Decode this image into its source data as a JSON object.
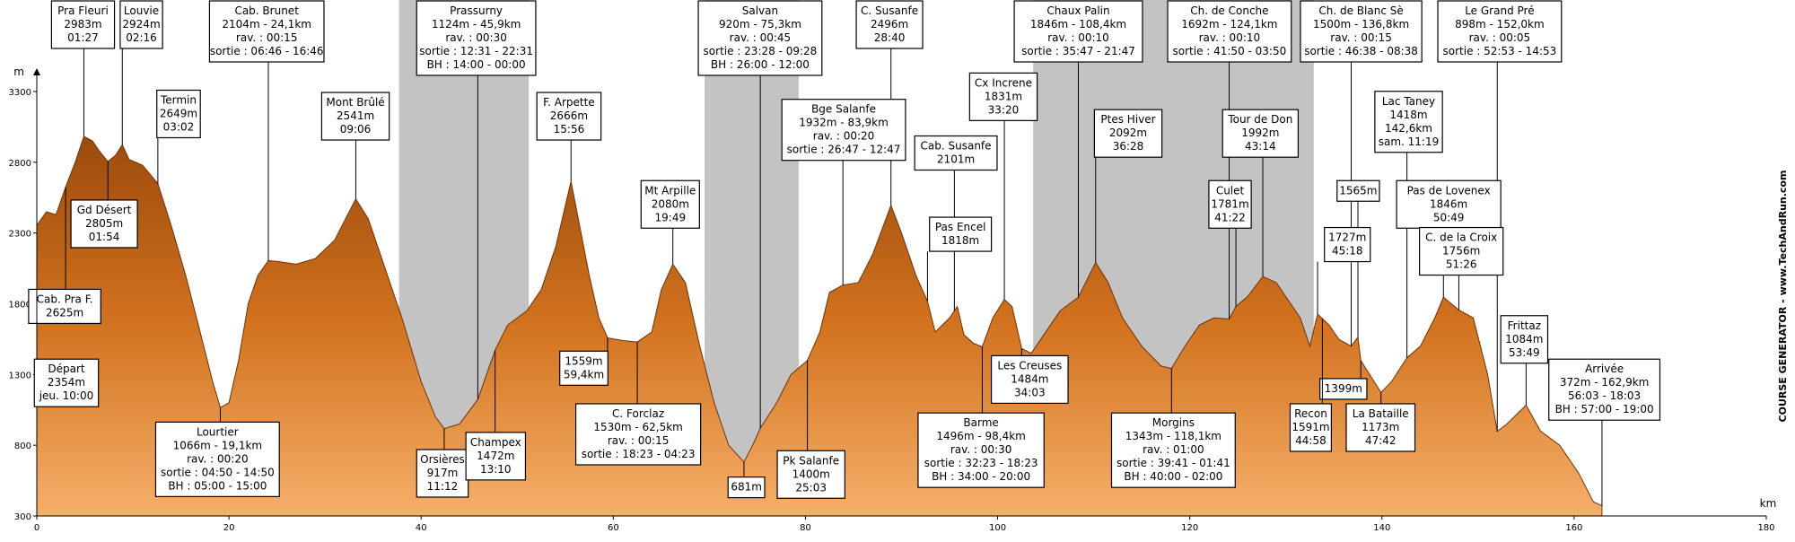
{
  "chart_data": {
    "type": "area",
    "x": [
      0,
      1,
      2,
      3,
      4,
      4.9,
      5.8,
      6.5,
      7.4,
      8.2,
      8.9,
      9.6,
      11,
      12.6,
      14,
      15.5,
      17,
      18.3,
      19.1,
      20,
      21,
      22,
      23,
      24.1,
      25,
      27,
      29,
      31,
      33.2,
      34.5,
      36,
      38,
      40,
      41.5,
      42.4,
      44,
      45.9,
      47.7,
      49,
      51,
      52.5,
      54,
      55.6,
      56.5,
      57.5,
      58.5,
      59.4,
      61,
      62.5,
      64,
      65,
      66.2,
      67.5,
      69,
      70.5,
      72,
      73.6,
      74.5,
      75.3,
      77,
      78.5,
      80.2,
      81.5,
      82.5,
      83.9,
      85.5,
      87,
      88.9,
      90,
      91.5,
      92.7,
      93.5,
      95,
      95.8,
      96.5,
      97.5,
      98.4,
      99.5,
      100.7,
      101.5,
      102.5,
      103.5,
      105,
      106.5,
      108.4,
      110.2,
      111.5,
      113,
      115,
      117,
      118.1,
      119.5,
      121,
      122.5,
      124.1,
      124.8,
      126,
      127.6,
      129,
      130.5,
      131.5,
      132.5,
      133.3,
      134.5,
      135.5,
      136.8,
      137.5,
      137.8,
      139.9,
      141,
      142.6,
      144,
      145.5,
      146.4,
      148,
      149.5,
      151,
      152,
      153,
      155,
      156.5,
      158.5,
      160.5,
      162,
      162.9
    ],
    "values": [
      2354,
      2450,
      2430,
      2625,
      2800,
      2983,
      2950,
      2880,
      2805,
      2850,
      2924,
      2820,
      2780,
      2649,
      2350,
      2000,
      1600,
      1250,
      1066,
      1100,
      1400,
      1800,
      2000,
      2104,
      2100,
      2080,
      2120,
      2250,
      2541,
      2400,
      2100,
      1700,
      1250,
      1000,
      917,
      950,
      1124,
      1472,
      1650,
      1750,
      1900,
      2200,
      2666,
      2350,
      2000,
      1700,
      1559,
      1540,
      1530,
      1600,
      1900,
      2080,
      1950,
      1500,
      1100,
      800,
      681,
      800,
      920,
      1100,
      1300,
      1400,
      1600,
      1880,
      1932,
      1950,
      2150,
      2496,
      2300,
      2000,
      1818,
      1600,
      1700,
      1780,
      1580,
      1520,
      1496,
      1700,
      1831,
      1780,
      1484,
      1450,
      1600,
      1750,
      1846,
      2092,
      1950,
      1700,
      1500,
      1360,
      1343,
      1500,
      1650,
      1700,
      1692,
      1781,
      1850,
      1992,
      1950,
      1800,
      1700,
      1500,
      1727,
      1650,
      1550,
      1500,
      1565,
      1399,
      1173,
      1250,
      1418,
      1500,
      1700,
      1846,
      1756,
      1700,
      1300,
      898,
      950,
      1084,
      900,
      800,
      600,
      400,
      372
    ],
    "color": "#d2731f",
    "xlim": [
      0,
      180
    ],
    "ylim": [
      300,
      3300
    ],
    "xticks": [
      0,
      20,
      40,
      60,
      80,
      100,
      120,
      140,
      160,
      180
    ],
    "yticks": [
      300,
      800,
      1300,
      1800,
      2300,
      2800,
      3300
    ],
    "xlabel": "km",
    "ylabel": "m",
    "shaded_ranges": [
      [
        37.7,
        51.2
      ],
      [
        69.5,
        79.3
      ],
      [
        103.7,
        132.9
      ]
    ],
    "annotations": [
      {
        "lines": [
          "Pra Fleuri",
          "2983m",
          "01:27"
        ],
        "x": 4.9
      },
      {
        "lines": [
          "Louvie",
          "2924m",
          "02:16"
        ],
        "x": 8.9
      },
      {
        "lines": [
          "Cab. Brunet",
          "2104m - 24,1km",
          "rav. : 00:15",
          "sortie : 06:46 - 16:46"
        ],
        "x": 24.1
      },
      {
        "lines": [
          "Prassurny",
          "1124m - 45,9km",
          "rav. : 00:30",
          "sortie : 12:31 - 22:31",
          "BH : 14:00 - 00:00"
        ],
        "x": 45.9
      },
      {
        "lines": [
          "Salvan",
          "920m - 75,3km",
          "rav. : 00:45",
          "sortie : 23:28 - 09:28",
          "BH : 26:00 - 12:00"
        ],
        "x": 75.3
      },
      {
        "lines": [
          "C. Susanfe",
          "2496m",
          "28:40"
        ],
        "x": 88.9
      },
      {
        "lines": [
          "Chaux Palin",
          "1846m - 108,4km",
          "rav. : 00:10",
          "sortie : 35:47 - 21:47"
        ],
        "x": 108.4
      },
      {
        "lines": [
          "Ch. de Conche",
          "1692m - 124,1km",
          "rav. : 00:10",
          "sortie : 41:50 - 03:50"
        ],
        "x": 124.1
      },
      {
        "lines": [
          "Ch. de Blanc Sè",
          "1500m - 136,8km",
          "rav. : 00:15",
          "sortie : 46:38 - 08:38"
        ],
        "x": 136.8
      },
      {
        "lines": [
          "Le Grand Pré",
          "898m - 152,0km",
          "rav. : 00:05",
          "sortie : 52:53 - 14:53"
        ],
        "x": 152
      },
      {
        "lines": [
          "Termin",
          "2649m",
          "03:02"
        ],
        "x": 12.6
      },
      {
        "lines": [
          "Mont Brûlé",
          "2541m",
          "09:06"
        ],
        "x": 33.2
      },
      {
        "lines": [
          "F. Arpette",
          "2666m",
          "15:56"
        ],
        "x": 55.6
      },
      {
        "lines": [
          "Bge Salanfe",
          "1932m - 83,9km",
          "rav. : 00:20",
          "sortie : 26:47 - 12:47"
        ],
        "x": 83.9
      },
      {
        "lines": [
          "Cx Increne",
          "1831m",
          "33:20"
        ],
        "x": 100.7
      },
      {
        "lines": [
          "Cab. Susanfe",
          "2101m"
        ],
        "x": 95.5
      },
      {
        "lines": [
          "Ptes Hiver",
          "2092m",
          "36:28"
        ],
        "x": 110.2
      },
      {
        "lines": [
          "Tour de Don",
          "1992m",
          "43:14"
        ],
        "x": 127.6
      },
      {
        "lines": [
          "Lac Taney",
          "1418m",
          "142,6km",
          "sam. 11:19"
        ],
        "x": 142.6
      },
      {
        "lines": [
          "Mt Arpille",
          "2080m",
          "19:49"
        ],
        "x": 66.2
      },
      {
        "lines": [
          "Gd Désert",
          "2805m",
          "01:54"
        ],
        "x": 7.4
      },
      {
        "lines": [
          "Pas Encel",
          "1818m"
        ],
        "x": 92.7
      },
      {
        "lines": [
          "Culet",
          "1781m",
          "41:22"
        ],
        "x": 124.8
      },
      {
        "lines": [
          "1565m"
        ],
        "x": 137.5
      },
      {
        "lines": [
          "Pas de Lovenex",
          "1846m",
          "50:49"
        ],
        "x": 146.4
      },
      {
        "lines": [
          "1727m",
          "45:18"
        ],
        "x": 133.3
      },
      {
        "lines": [
          "C. de la Croix",
          "1756m",
          "51:26"
        ],
        "x": 148
      },
      {
        "lines": [
          "Cab. Pra F.",
          "2625m"
        ],
        "x": 3
      },
      {
        "lines": [
          "Départ",
          "2354m",
          "jeu. 10:00"
        ],
        "x": 0
      },
      {
        "lines": [
          "Frittaz",
          "1084m",
          "53:49"
        ],
        "x": 155
      },
      {
        "lines": [
          "Arrivée",
          "372m - 162,9km",
          "56:03 - 18:03",
          "BH : 57:00 - 19:00"
        ],
        "x": 162.9
      },
      {
        "lines": [
          "Les Creuses",
          "1484m",
          "34:03"
        ],
        "x": 102.5
      },
      {
        "lines": [
          "1559m",
          "59,4km"
        ],
        "x": 59.4
      },
      {
        "lines": [
          "1399m"
        ],
        "x": 137.8
      },
      {
        "lines": [
          "Lourtier",
          "1066m - 19,1km",
          "rav. : 00:20",
          "sortie : 04:50 - 14:50",
          "BH : 05:00 - 15:00"
        ],
        "x": 19.1
      },
      {
        "lines": [
          "Orsières",
          "917m",
          "11:12"
        ],
        "x": 42.4
      },
      {
        "lines": [
          "Champex",
          "1472m",
          "13:10"
        ],
        "x": 47.7
      },
      {
        "lines": [
          "C. Forclaz",
          "1530m - 62,5km",
          "rav. : 00:15",
          "sortie : 18:23 - 04:23"
        ],
        "x": 62.5
      },
      {
        "lines": [
          "681m"
        ],
        "x": 73.6
      },
      {
        "lines": [
          "Pk Salanfe",
          "1400m",
          "25:03"
        ],
        "x": 80.2
      },
      {
        "lines": [
          "Barme",
          "1496m - 98,4km",
          "rav. : 00:30",
          "sortie : 32:23 - 18:23",
          "BH : 34:00 - 20:00"
        ],
        "x": 98.4
      },
      {
        "lines": [
          "Morgins",
          "1343m - 118,1km",
          "rav. : 01:00",
          "sortie : 39:41 - 01:41",
          "BH : 40:00 - 02:00"
        ],
        "x": 118.1
      },
      {
        "lines": [
          "Recon",
          "1591m",
          "44:58"
        ],
        "x": 133.8
      },
      {
        "lines": [
          "La Bataille",
          "1173m",
          "47:42"
        ],
        "x": 139.9
      }
    ]
  },
  "credit": "COURSE GENERATOR - www.TechAndRun.com"
}
